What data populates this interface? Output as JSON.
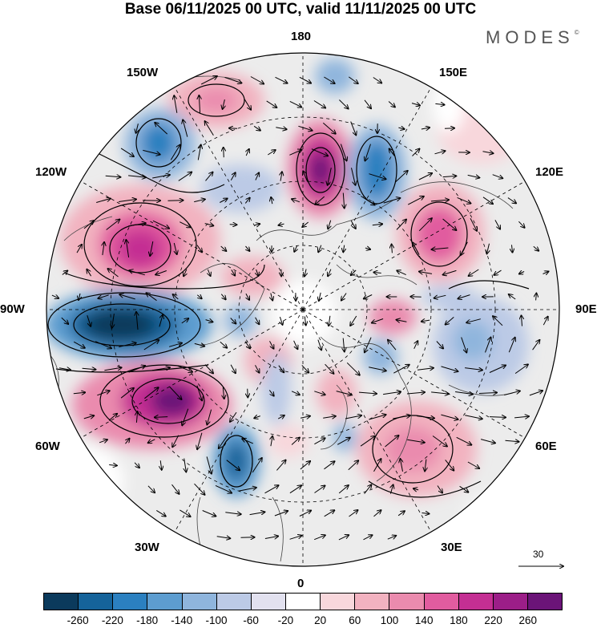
{
  "title": "Base 06/11/2025 00 UTC, valid 11/11/2025 00 UTC",
  "brand": "MODES",
  "brand_mark": "©",
  "longitude_labels": {
    "top": "180",
    "bottom": "0",
    "left": "90W",
    "right": "90E",
    "upper_left": "150W",
    "upper_right": "150E",
    "left_upper": "120W",
    "right_upper": "120E",
    "left_lower": "60W",
    "right_lower": "60E",
    "lower_left": "30W",
    "lower_right": "30E"
  },
  "reference_vector": {
    "label": "30"
  },
  "colorbar": {
    "colors": [
      "#0b3a5c",
      "#15639a",
      "#2b80c0",
      "#5d9dd0",
      "#8fb5dd",
      "#bccae6",
      "#e2e1ef",
      "#ffffff",
      "#f8d7dc",
      "#f2b2c0",
      "#ea8bae",
      "#e15c9f",
      "#c42f93",
      "#9c1e88",
      "#6b1478"
    ],
    "tick_labels": [
      "-260",
      "-220",
      "-180",
      "-140",
      "-100",
      "-60",
      "-20",
      "20",
      "60",
      "100",
      "140",
      "180",
      "220",
      "260"
    ]
  }
}
